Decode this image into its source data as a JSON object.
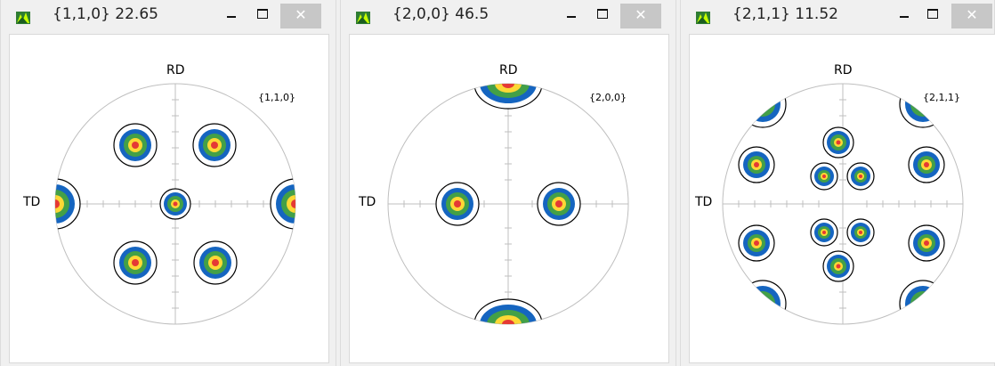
{
  "windows": [
    {
      "title": "{1,1,0} 22.65",
      "plot_label": "{1,1,0}",
      "rd_label": "RD",
      "td_label": "TD",
      "close_label": "✕",
      "spots": [
        [
          0.535,
          0.475,
          14
        ],
        [
          0.705,
          0.475,
          14
        ],
        [
          0.535,
          0.64,
          14
        ],
        [
          0.705,
          0.64,
          14
        ],
        [
          0.62,
          0.57,
          11
        ],
        [
          0.435,
          0.57,
          22
        ],
        [
          0.805,
          0.57,
          22
        ]
      ]
    },
    {
      "title": "{2,0,0} 46.5",
      "plot_label": "{2,0,0}",
      "rd_label": "RD",
      "td_label": "TD",
      "close_label": "✕",
      "spots": [
        [
          0.505,
          0.365,
          22
        ],
        [
          0.735,
          0.365,
          22
        ],
        [
          0.425,
          0.57,
          14
        ],
        [
          0.65,
          0.57,
          14
        ]
      ]
    },
    {
      "title": "{2,1,1} 11.52",
      "plot_label": "{2,1,1}",
      "rd_label": "RD",
      "td_label": "TD",
      "close_label": "✕",
      "spots": [
        [
          0.5,
          0.42,
          12
        ],
        [
          0.655,
          0.42,
          12
        ]
      ]
    }
  ]
}
